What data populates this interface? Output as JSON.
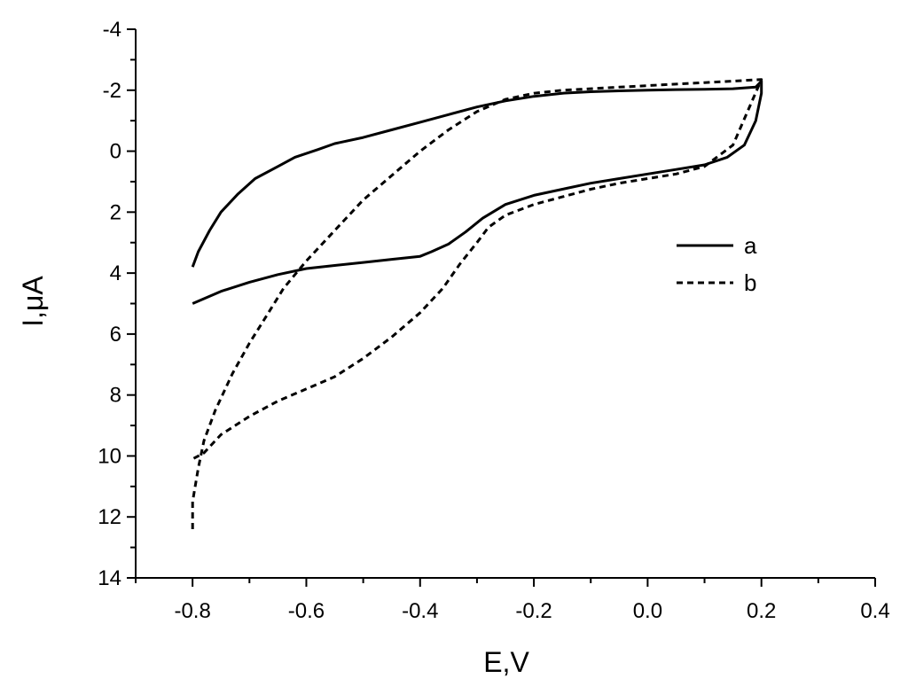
{
  "chart_data": {
    "type": "line",
    "title": "",
    "xlabel": "E,V",
    "ylabel": "I,μA",
    "xlim": [
      -0.9,
      0.4
    ],
    "ylim": [
      -4,
      14
    ],
    "y_inverted": true,
    "grid": false,
    "legend_position": "right",
    "x_ticks": [
      -0.8,
      -0.6,
      -0.4,
      -0.2,
      0.0,
      0.2,
      0.4
    ],
    "x_tick_labels": [
      "-0.8",
      "-0.6",
      "-0.4",
      "-0.2",
      "0.0",
      "0.2",
      "0.4"
    ],
    "y_ticks": [
      -4,
      -2,
      0,
      2,
      4,
      6,
      8,
      10,
      12,
      14
    ],
    "y_tick_labels": [
      "-4",
      "-2",
      "0",
      "2",
      "4",
      "6",
      "8",
      "10",
      "12",
      "14"
    ],
    "series": [
      {
        "name": "a",
        "line_style": "solid",
        "color": "#000000",
        "x": [
          -0.8,
          -0.79,
          -0.77,
          -0.75,
          -0.72,
          -0.69,
          -0.65,
          -0.62,
          -0.58,
          -0.55,
          -0.5,
          -0.45,
          -0.4,
          -0.35,
          -0.3,
          -0.25,
          -0.2,
          -0.15,
          -0.1,
          -0.05,
          0.0,
          0.05,
          0.1,
          0.15,
          0.19,
          0.2,
          0.2,
          0.19,
          0.17,
          0.14,
          0.1,
          0.05,
          0.0,
          -0.05,
          -0.1,
          -0.15,
          -0.2,
          -0.25,
          -0.29,
          -0.32,
          -0.35,
          -0.38,
          -0.4,
          -0.45,
          -0.5,
          -0.55,
          -0.6,
          -0.65,
          -0.7,
          -0.75,
          -0.8
        ],
        "y": [
          3.8,
          3.3,
          2.6,
          2.0,
          1.4,
          0.9,
          0.5,
          0.2,
          -0.05,
          -0.25,
          -0.45,
          -0.7,
          -0.95,
          -1.2,
          -1.45,
          -1.65,
          -1.8,
          -1.9,
          -1.95,
          -1.98,
          -2.0,
          -2.02,
          -2.03,
          -2.05,
          -2.1,
          -2.3,
          -1.9,
          -1.0,
          -0.2,
          0.2,
          0.45,
          0.6,
          0.75,
          0.9,
          1.05,
          1.25,
          1.45,
          1.75,
          2.2,
          2.65,
          3.05,
          3.3,
          3.45,
          3.55,
          3.65,
          3.75,
          3.85,
          4.05,
          4.3,
          4.6,
          5.0
        ]
      },
      {
        "name": "b",
        "line_style": "dashed",
        "color": "#000000",
        "x": [
          -0.8,
          -0.8,
          -0.79,
          -0.78,
          -0.76,
          -0.73,
          -0.7,
          -0.67,
          -0.64,
          -0.6,
          -0.55,
          -0.5,
          -0.45,
          -0.4,
          -0.35,
          -0.3,
          -0.25,
          -0.2,
          -0.15,
          -0.1,
          -0.05,
          0.0,
          0.05,
          0.1,
          0.15,
          0.2,
          0.15,
          0.1,
          0.05,
          0.0,
          -0.05,
          -0.1,
          -0.15,
          -0.2,
          -0.25,
          -0.28,
          -0.3,
          -0.33,
          -0.36,
          -0.4,
          -0.45,
          -0.5,
          -0.55,
          -0.6,
          -0.65,
          -0.7,
          -0.75,
          -0.78,
          -0.8
        ],
        "y": [
          12.4,
          11.5,
          10.4,
          9.5,
          8.5,
          7.3,
          6.3,
          5.4,
          4.5,
          3.6,
          2.6,
          1.6,
          0.8,
          0.0,
          -0.7,
          -1.3,
          -1.7,
          -1.9,
          -2.0,
          -2.05,
          -2.1,
          -2.15,
          -2.2,
          -2.25,
          -2.3,
          -2.35,
          -0.2,
          0.5,
          0.75,
          0.9,
          1.05,
          1.25,
          1.5,
          1.75,
          2.1,
          2.5,
          3.0,
          3.7,
          4.5,
          5.3,
          6.1,
          6.8,
          7.4,
          7.8,
          8.2,
          8.7,
          9.3,
          9.9,
          10.1
        ]
      }
    ]
  }
}
